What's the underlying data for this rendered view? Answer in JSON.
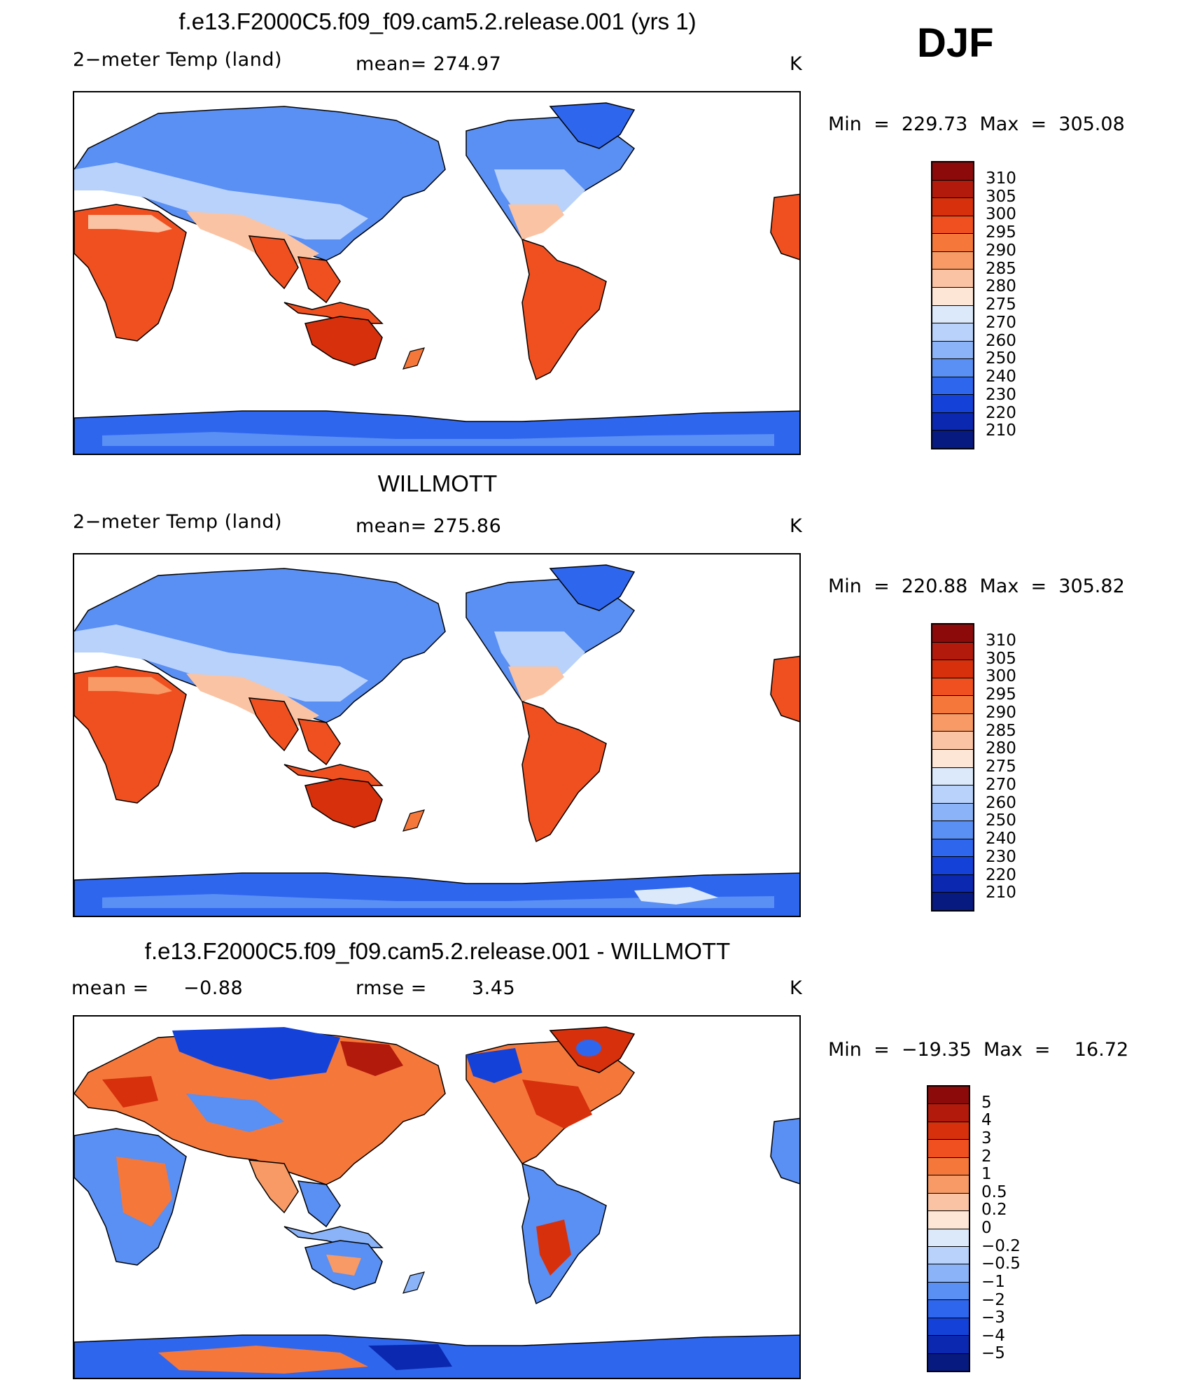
{
  "season": "DJF",
  "panel_top": {
    "title": "f.e13.F2000C5.f09_f09.cam5.2.release.001 (yrs 1)",
    "variable": "2−meter Temp (land)",
    "mean": "mean= 274.97",
    "units": "K",
    "minmax": "Min  =  229.73  Max  =  305.08"
  },
  "panel_mid": {
    "title": "WILLMOTT",
    "variable": "2−meter Temp (land)",
    "mean": "mean= 275.86",
    "units": "K",
    "minmax": "Min  =  220.88  Max  =  305.82"
  },
  "panel_diff": {
    "title": "f.e13.F2000C5.f09_f09.cam5.2.release.001 - WILLMOTT",
    "mean_label": "mean  =",
    "mean_value": "−0.88",
    "rmse_label": "rmse  =",
    "rmse_value": "3.45",
    "units": "K",
    "minmax": "Min  =  −19.35  Max  =    16.72"
  },
  "colorbar_temp": {
    "labels": [
      "310",
      "305",
      "300",
      "295",
      "290",
      "285",
      "280",
      "275",
      "270",
      "260",
      "250",
      "240",
      "230",
      "220",
      "210"
    ],
    "colors": [
      "#8c0a0a",
      "#b21a0c",
      "#d6300c",
      "#f05020",
      "#f5773a",
      "#f79a66",
      "#fac3a4",
      "#fde6d6",
      "#dbe9fb",
      "#b8d2fb",
      "#8ab3f8",
      "#5a8ff3",
      "#2f66ee",
      "#1442d8",
      "#0a28b0",
      "#061a80"
    ]
  },
  "colorbar_diff": {
    "labels": [
      "5",
      "4",
      "3",
      "2",
      "1",
      "0.5",
      "0.2",
      "0",
      "−0.2",
      "−0.5",
      "−1",
      "−2",
      "−3",
      "−4",
      "−5"
    ],
    "colors": [
      "#8c0a0a",
      "#b21a0c",
      "#d6300c",
      "#f05020",
      "#f5773a",
      "#f79a66",
      "#fac3a4",
      "#fde6d6",
      "#dbe9fb",
      "#b8d2fb",
      "#8ab3f8",
      "#5a8ff3",
      "#2f66ee",
      "#1442d8",
      "#0a28b0",
      "#061a80"
    ]
  }
}
